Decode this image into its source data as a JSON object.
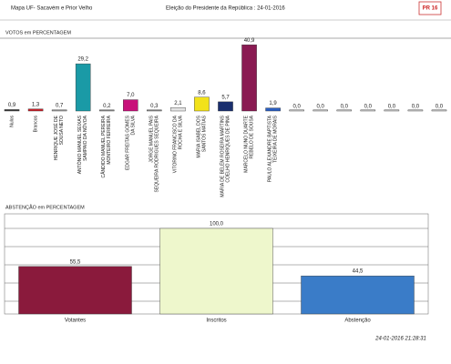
{
  "header": {
    "location": "Mapa UF- Sacavém e Prior Velho",
    "election": "Eleição do Presidente da República : 24-01-2016",
    "logo": "PR 16"
  },
  "footer": {
    "timestamp": "24-01-2016 21:28:31"
  },
  "chart_data": [
    {
      "type": "bar",
      "title": "VOTOS em PERCENTAGEM",
      "categories": [
        "Nulos",
        "Brancos",
        "HENRIQUE JOSÉ DE SOUSA NETO",
        "ANTÓNIO MANUEL SEIXAS SAMPAIO DA NÓVOA",
        "CÂNDIDO MANUEL PEREIRA MONTEIRO FERREIRA",
        "EDGAR FREITAS GOMES DA SILVA",
        "JORGE MANUEL PAIS SEQUEIRA RODRIGUES SEQUEIRA",
        "VITORINO FRANCISCO DA ROCHA E SILVA",
        "MARIA ISABEL DOS SANTOS MATIAS",
        "MARIA DE BELÉM ROSEIRA MARTINS COELHO HENRIQUES DE PINA",
        "MARCELO NUNO DUARTE REBELO DE SOUSA",
        "PAULO ALEXANDRE BAPTISTA TEIXEIRA DE MORAIS",
        null,
        null,
        null,
        null,
        null,
        null,
        null
      ],
      "values": [
        0.9,
        1.3,
        0.7,
        29.2,
        0.2,
        7.0,
        0.3,
        2.1,
        8.6,
        5.7,
        40.9,
        1.9,
        0,
        0,
        0,
        0,
        0,
        0,
        0
      ],
      "value_labels": [
        "0,9",
        "1,3",
        "0,7",
        "29,2",
        "0,2",
        "7,0",
        "0,3",
        "2,1",
        "8,6",
        "5,7",
        "40,9",
        "1,9",
        "0,0",
        "0,0",
        "0,0",
        "0,0",
        "0,0",
        "0,0",
        "0,0"
      ],
      "colors": [
        "#3a3a3a",
        "#c8202a",
        "#9a9a9a",
        "#1a9aa6",
        "#8a8a8a",
        "#c8107a",
        "#8a8a8a",
        "#e4e4e4",
        "#f2e21a",
        "#1a2f6e",
        "#8a1a52",
        "#2a5ec0",
        "#cccccc",
        "#cccccc",
        "#cccccc",
        "#cccccc",
        "#cccccc",
        "#cccccc",
        "#cccccc"
      ],
      "ylim": [
        0,
        45
      ]
    },
    {
      "type": "bar",
      "title": "ABSTENÇÃO em PERCENTAGEM",
      "categories": [
        "Votantes",
        "Inscritos",
        "Abstenção"
      ],
      "values": [
        55.5,
        100.0,
        44.5
      ],
      "value_labels": [
        "55,5",
        "100,0",
        "44,5"
      ],
      "colors": [
        "#8a1a3c",
        "#eef7cc",
        "#3a7cc8"
      ],
      "ylim": [
        0,
        117
      ]
    }
  ]
}
